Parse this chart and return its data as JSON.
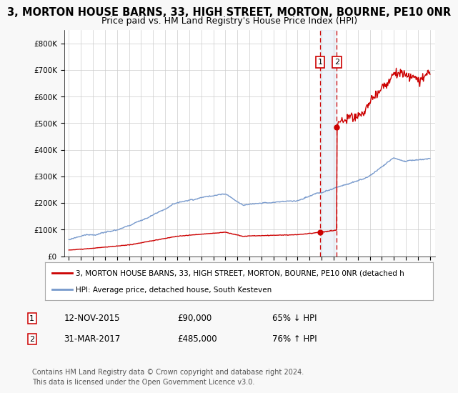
{
  "title": "3, MORTON HOUSE BARNS, 33, HIGH STREET, MORTON, BOURNE, PE10 0NR",
  "subtitle": "Price paid vs. HM Land Registry's House Price Index (HPI)",
  "ylabel_ticks": [
    "£0",
    "£100K",
    "£200K",
    "£300K",
    "£400K",
    "£500K",
    "£600K",
    "£700K",
    "£800K"
  ],
  "ytick_values": [
    0,
    100000,
    200000,
    300000,
    400000,
    500000,
    600000,
    700000,
    800000
  ],
  "ylim": [
    0,
    850000
  ],
  "xlim_start": 1994.6,
  "xlim_end": 2025.4,
  "transaction1_date": 2015.87,
  "transaction1_price": 90000,
  "transaction1_label": "12-NOV-2015",
  "transaction1_pct": "65% ↓ HPI",
  "transaction2_date": 2017.25,
  "transaction2_price": 485000,
  "transaction2_label": "31-MAR-2017",
  "transaction2_pct": "76% ↑ HPI",
  "red_line_color": "#cc0000",
  "blue_line_color": "#7799cc",
  "dashed_line_color": "#cc0000",
  "highlight_fill": "#ccddf0",
  "legend_line1": "3, MORTON HOUSE BARNS, 33, HIGH STREET, MORTON, BOURNE, PE10 0NR (detached h",
  "legend_line2": "HPI: Average price, detached house, South Kesteven",
  "footer1": "Contains HM Land Registry data © Crown copyright and database right 2024.",
  "footer2": "This data is licensed under the Open Government Licence v3.0.",
  "background_color": "#f8f8f8",
  "plot_bg_color": "#ffffff",
  "grid_color": "#cccccc",
  "title_fontsize": 10.5,
  "subtitle_fontsize": 9,
  "axis_fontsize": 7.5,
  "legend_fontsize": 8
}
